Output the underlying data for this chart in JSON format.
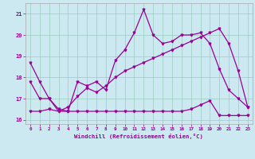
{
  "xlabel": "Windchill (Refroidissement éolien,°C)",
  "background_color": "#cce8f0",
  "grid_color": "#99ccbb",
  "line_color": "#990099",
  "xlim": [
    -0.5,
    23.5
  ],
  "ylim": [
    15.8,
    21.5
  ],
  "yticks": [
    16,
    17,
    18,
    19,
    20,
    21
  ],
  "xticks": [
    0,
    1,
    2,
    3,
    4,
    5,
    6,
    7,
    8,
    9,
    10,
    11,
    12,
    13,
    14,
    15,
    16,
    17,
    18,
    19,
    20,
    21,
    22,
    23
  ],
  "series1_x": [
    0,
    1,
    2,
    3,
    4,
    5,
    6,
    7,
    8,
    9,
    10,
    11,
    12,
    13,
    14,
    15,
    16,
    17,
    18,
    19,
    20,
    21,
    22,
    23
  ],
  "series1_y": [
    18.7,
    17.8,
    17.0,
    16.5,
    16.4,
    17.8,
    17.6,
    17.8,
    17.4,
    18.8,
    19.3,
    20.1,
    21.2,
    20.0,
    19.6,
    19.7,
    20.0,
    20.0,
    20.1,
    19.6,
    18.4,
    17.4,
    17.0,
    16.6
  ],
  "series2_x": [
    0,
    1,
    2,
    3,
    4,
    5,
    6,
    7,
    8,
    9,
    10,
    11,
    12,
    13,
    14,
    15,
    16,
    17,
    18,
    19,
    20,
    21,
    22,
    23
  ],
  "series2_y": [
    17.8,
    17.0,
    17.0,
    16.4,
    16.6,
    17.1,
    17.5,
    17.3,
    17.6,
    18.0,
    18.3,
    18.5,
    18.7,
    18.9,
    19.1,
    19.3,
    19.5,
    19.7,
    19.9,
    20.1,
    20.3,
    19.6,
    18.3,
    16.6
  ],
  "series3_x": [
    0,
    1,
    2,
    3,
    4,
    5,
    6,
    7,
    8,
    9,
    10,
    11,
    12,
    13,
    14,
    15,
    16,
    17,
    18,
    19,
    20,
    21,
    22,
    23
  ],
  "series3_y": [
    16.4,
    16.4,
    16.5,
    16.4,
    16.4,
    16.4,
    16.4,
    16.4,
    16.4,
    16.4,
    16.4,
    16.4,
    16.4,
    16.4,
    16.4,
    16.4,
    16.4,
    16.5,
    16.7,
    16.9,
    16.2,
    16.2,
    16.2,
    16.2
  ]
}
